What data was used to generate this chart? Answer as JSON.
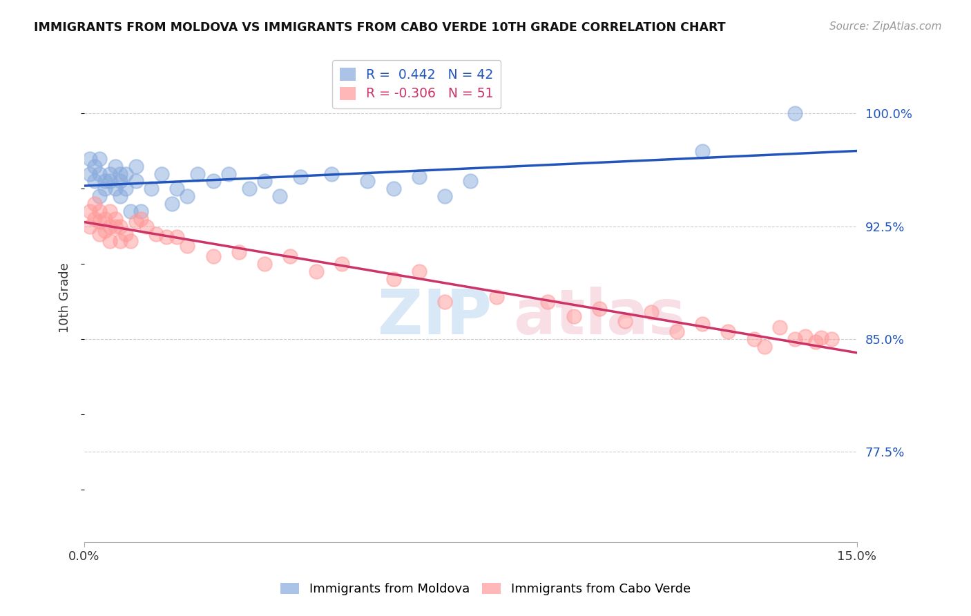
{
  "title": "IMMIGRANTS FROM MOLDOVA VS IMMIGRANTS FROM CABO VERDE 10TH GRADE CORRELATION CHART",
  "source": "Source: ZipAtlas.com",
  "ylabel": "10th Grade",
  "y_ticks": [
    0.775,
    0.85,
    0.925,
    1.0
  ],
  "y_tick_labels": [
    "77.5%",
    "85.0%",
    "92.5%",
    "100.0%"
  ],
  "xmin": 0.0,
  "xmax": 0.15,
  "ymin": 0.715,
  "ymax": 1.04,
  "legend_r_moldova": " 0.442",
  "legend_n_moldova": "42",
  "legend_r_caboverde": "-0.306",
  "legend_n_caboverde": "51",
  "moldova_color": "#88AADD",
  "caboverde_color": "#FF9999",
  "moldova_line_color": "#2255BB",
  "caboverde_line_color": "#CC3366",
  "moldova_x": [
    0.001,
    0.001,
    0.002,
    0.002,
    0.003,
    0.003,
    0.003,
    0.004,
    0.004,
    0.005,
    0.005,
    0.006,
    0.006,
    0.007,
    0.007,
    0.007,
    0.008,
    0.008,
    0.009,
    0.01,
    0.01,
    0.011,
    0.013,
    0.015,
    0.017,
    0.018,
    0.02,
    0.022,
    0.025,
    0.028,
    0.032,
    0.035,
    0.038,
    0.042,
    0.048,
    0.055,
    0.06,
    0.065,
    0.07,
    0.075,
    0.12,
    0.138
  ],
  "moldova_y": [
    0.96,
    0.97,
    0.955,
    0.965,
    0.945,
    0.96,
    0.97,
    0.955,
    0.95,
    0.96,
    0.955,
    0.95,
    0.965,
    0.96,
    0.955,
    0.945,
    0.96,
    0.95,
    0.935,
    0.955,
    0.965,
    0.935,
    0.95,
    0.96,
    0.94,
    0.95,
    0.945,
    0.96,
    0.955,
    0.96,
    0.95,
    0.955,
    0.945,
    0.958,
    0.96,
    0.955,
    0.95,
    0.958,
    0.945,
    0.955,
    0.975,
    1.0
  ],
  "caboverde_x": [
    0.001,
    0.001,
    0.002,
    0.002,
    0.003,
    0.003,
    0.003,
    0.004,
    0.004,
    0.005,
    0.005,
    0.005,
    0.006,
    0.006,
    0.007,
    0.007,
    0.008,
    0.009,
    0.01,
    0.011,
    0.012,
    0.014,
    0.016,
    0.018,
    0.02,
    0.025,
    0.03,
    0.035,
    0.04,
    0.045,
    0.05,
    0.06,
    0.065,
    0.07,
    0.08,
    0.09,
    0.095,
    0.1,
    0.105,
    0.11,
    0.115,
    0.12,
    0.125,
    0.13,
    0.132,
    0.135,
    0.138,
    0.14,
    0.142,
    0.143,
    0.145
  ],
  "caboverde_y": [
    0.935,
    0.925,
    0.94,
    0.93,
    0.935,
    0.928,
    0.92,
    0.93,
    0.922,
    0.935,
    0.925,
    0.915,
    0.93,
    0.925,
    0.925,
    0.915,
    0.92,
    0.915,
    0.928,
    0.93,
    0.925,
    0.92,
    0.918,
    0.918,
    0.912,
    0.905,
    0.908,
    0.9,
    0.905,
    0.895,
    0.9,
    0.89,
    0.895,
    0.875,
    0.878,
    0.875,
    0.865,
    0.87,
    0.862,
    0.868,
    0.855,
    0.86,
    0.855,
    0.85,
    0.845,
    0.858,
    0.85,
    0.852,
    0.848,
    0.851,
    0.85
  ]
}
